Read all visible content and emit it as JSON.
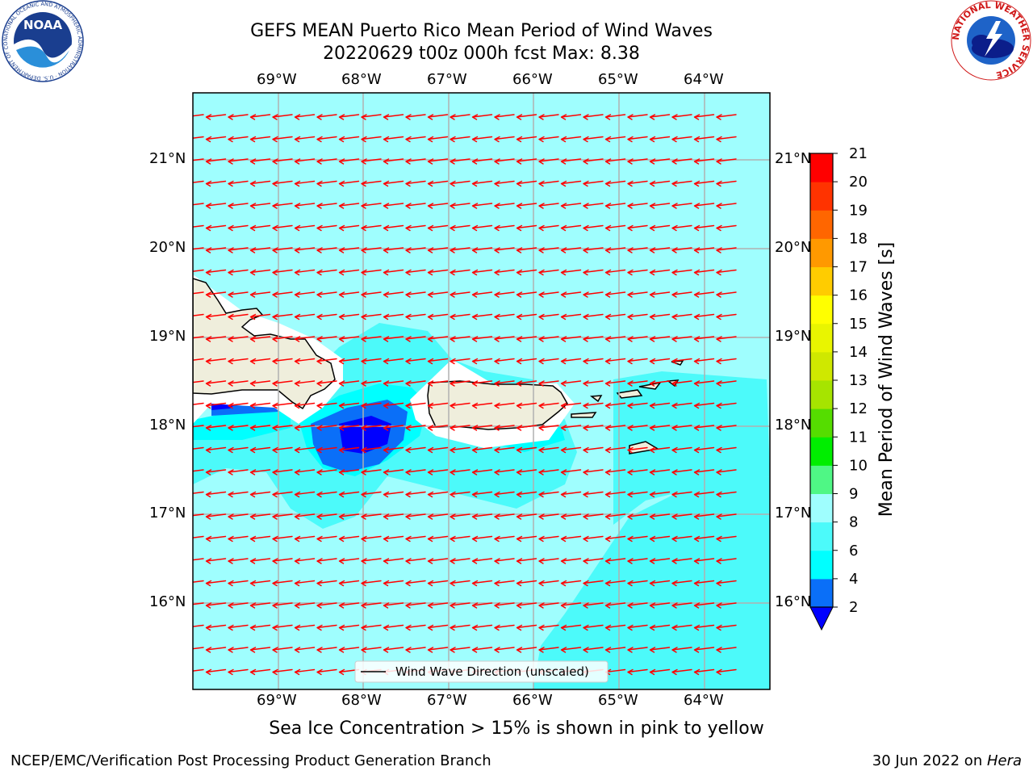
{
  "header": {
    "title_line1": "GEFS MEAN Puerto Rico Mean Period of Wind Waves",
    "title_line2": "20220629 t00z 000h fcst   Max: 8.38"
  },
  "logos": {
    "noaa_text": "NOAA",
    "noaa_ring": "NATIONAL OCEANIC AND ATMOSPHERIC ADMINISTRATION · U.S. DEPARTMENT OF COMMERCE",
    "nws_ring": "NATIONAL WEATHER SERVICE"
  },
  "map": {
    "lon_labels": [
      "69°W",
      "68°W",
      "67°W",
      "66°W",
      "65°W",
      "64°W"
    ],
    "lat_labels": [
      "21°N",
      "20°N",
      "19°N",
      "18°N",
      "17°N",
      "16°N"
    ],
    "legend_label": "Wind Wave Direction (unscaled)",
    "colors": {
      "ocean_base": "#9ffefe",
      "land": "#efeedc",
      "arrow": "#ff0000",
      "grid": "#b0b0b0"
    }
  },
  "colorbar": {
    "label": "Mean Period of Wind Waves [s]",
    "ticks": [
      "2",
      "4",
      "6",
      "8",
      "9",
      "10",
      "11",
      "12",
      "13",
      "14",
      "15",
      "16",
      "17",
      "18",
      "19",
      "20",
      "21"
    ],
    "colors": [
      "#0000ff",
      "#0a6ff8",
      "#00ffff",
      "#4cfafa",
      "#9ffefe",
      "#4ff785",
      "#00ee00",
      "#55dd00",
      "#a6e400",
      "#cfe800",
      "#e9f500",
      "#ffff00",
      "#ffcc00",
      "#ff9900",
      "#ff6600",
      "#ff3300",
      "#ff0000"
    ]
  },
  "footer": {
    "sea_ice_note": "Sea Ice Concentration > 15% is shown in pink to yellow",
    "branch": "NCEP/EMC/Verification Post Processing Product Generation Branch",
    "date_prefix": "30 Jun 2022 on ",
    "machine": "Hera"
  }
}
